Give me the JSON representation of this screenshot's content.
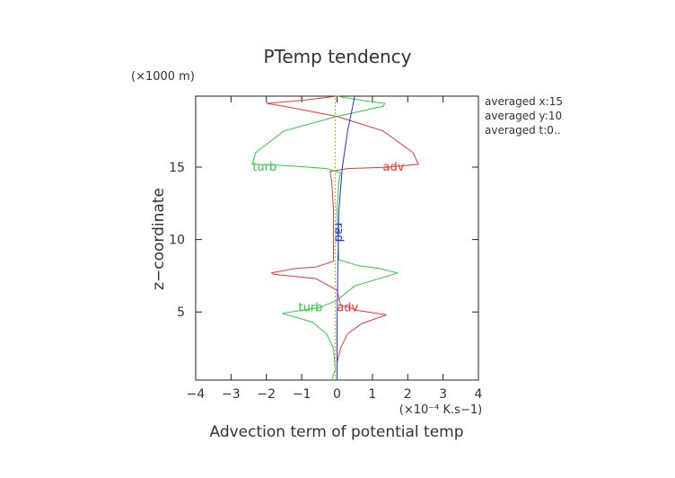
{
  "chart_data": {
    "type": "line",
    "title": "PTemp tendency",
    "xlabel": "Advection term of potential temp",
    "ylabel": "z−coordinate",
    "x_unit": "(×10⁻⁴ K.s−1)",
    "y_unit": "(×1000 m)",
    "xlim": [
      -4,
      4
    ],
    "ylim": [
      0,
      20
    ],
    "x_ticks": [
      -4,
      -3,
      -2,
      -1,
      0,
      1,
      2,
      3,
      4
    ],
    "x_tick_labels": [
      "−4",
      "−3",
      "−2",
      "−1",
      "0",
      "1",
      "2",
      "3",
      "4"
    ],
    "y_ticks": [
      5,
      10,
      15
    ],
    "y_tick_labels": [
      "5",
      "10",
      "15"
    ],
    "grid": false,
    "annotations": [
      "averaged  x:15",
      "averaged  y:10",
      "averaged  t:0.."
    ],
    "series": [
      {
        "name": "adv",
        "color": "#e53935",
        "points": [
          [
            0,
            0.3
          ],
          [
            0,
            1.5
          ],
          [
            0.1,
            2.5
          ],
          [
            0.3,
            3.5
          ],
          [
            0.7,
            4.2
          ],
          [
            1.4,
            4.8
          ],
          [
            0.6,
            5.1
          ],
          [
            0.1,
            5.5
          ],
          [
            0,
            6.5
          ],
          [
            -0.6,
            7.3
          ],
          [
            -1.8,
            7.6
          ],
          [
            -1.85,
            7.7
          ],
          [
            -1.2,
            8
          ],
          [
            -0.6,
            8.1
          ],
          [
            -0.1,
            8.5
          ],
          [
            -0.1,
            12
          ],
          [
            -0.15,
            14
          ],
          [
            -0.2,
            14.7
          ],
          [
            0.3,
            14.9
          ],
          [
            1.5,
            15
          ],
          [
            2.3,
            15.2
          ],
          [
            2.15,
            16
          ],
          [
            1.3,
            17.5
          ],
          [
            0,
            18.5
          ],
          [
            -1.5,
            19.2
          ],
          [
            -2.0,
            19.4
          ],
          [
            -1,
            19.6
          ],
          [
            0,
            19.9
          ]
        ]
      },
      {
        "name": "turb",
        "color": "#2ecc40",
        "points": [
          [
            -0.15,
            0.3
          ],
          [
            -0.05,
            1
          ],
          [
            -0.1,
            2.5
          ],
          [
            -0.3,
            3.5
          ],
          [
            -0.7,
            4.3
          ],
          [
            -1.55,
            4.9
          ],
          [
            -0.5,
            5.3
          ],
          [
            0,
            5.8
          ],
          [
            0.5,
            6.8
          ],
          [
            1.6,
            7.6
          ],
          [
            1.7,
            7.7
          ],
          [
            1.2,
            8
          ],
          [
            0.6,
            8.2
          ],
          [
            0.05,
            8.6
          ],
          [
            0,
            12
          ],
          [
            0.05,
            14
          ],
          [
            0.1,
            14.6
          ],
          [
            -0.3,
            14.9
          ],
          [
            -1.4,
            15.1
          ],
          [
            -2.4,
            15.2
          ],
          [
            -2.3,
            16
          ],
          [
            -1.5,
            17.5
          ],
          [
            0,
            18.5
          ],
          [
            1.3,
            19.2
          ],
          [
            1.35,
            19.4
          ],
          [
            0.7,
            19.6
          ],
          [
            0,
            19.9
          ]
        ]
      },
      {
        "name": "rad",
        "color": "#2233dd",
        "points": [
          [
            0,
            0.3
          ],
          [
            0,
            4
          ],
          [
            0.02,
            8
          ],
          [
            0.05,
            12
          ],
          [
            0.15,
            15
          ],
          [
            0.3,
            17.5
          ],
          [
            0.5,
            19.9
          ]
        ]
      },
      {
        "name": "",
        "color": "#e0a020",
        "dashed": true,
        "points": [
          [
            -0.05,
            0.3
          ],
          [
            -0.05,
            19.9
          ]
        ]
      }
    ],
    "curve_labels": [
      {
        "text": "adv",
        "series": "adv",
        "x": 1.6,
        "y": 15.0
      },
      {
        "text": "turb",
        "series": "turb",
        "x": -2.05,
        "y": 15.0
      },
      {
        "text": "rad",
        "series": "rad",
        "x": 0.05,
        "y": 10.5
      },
      {
        "text": "turb",
        "series": "turb",
        "x": -0.75,
        "y": 5.3
      },
      {
        "text": "adv",
        "series": "adv",
        "x": 0.3,
        "y": 5.3
      }
    ]
  }
}
